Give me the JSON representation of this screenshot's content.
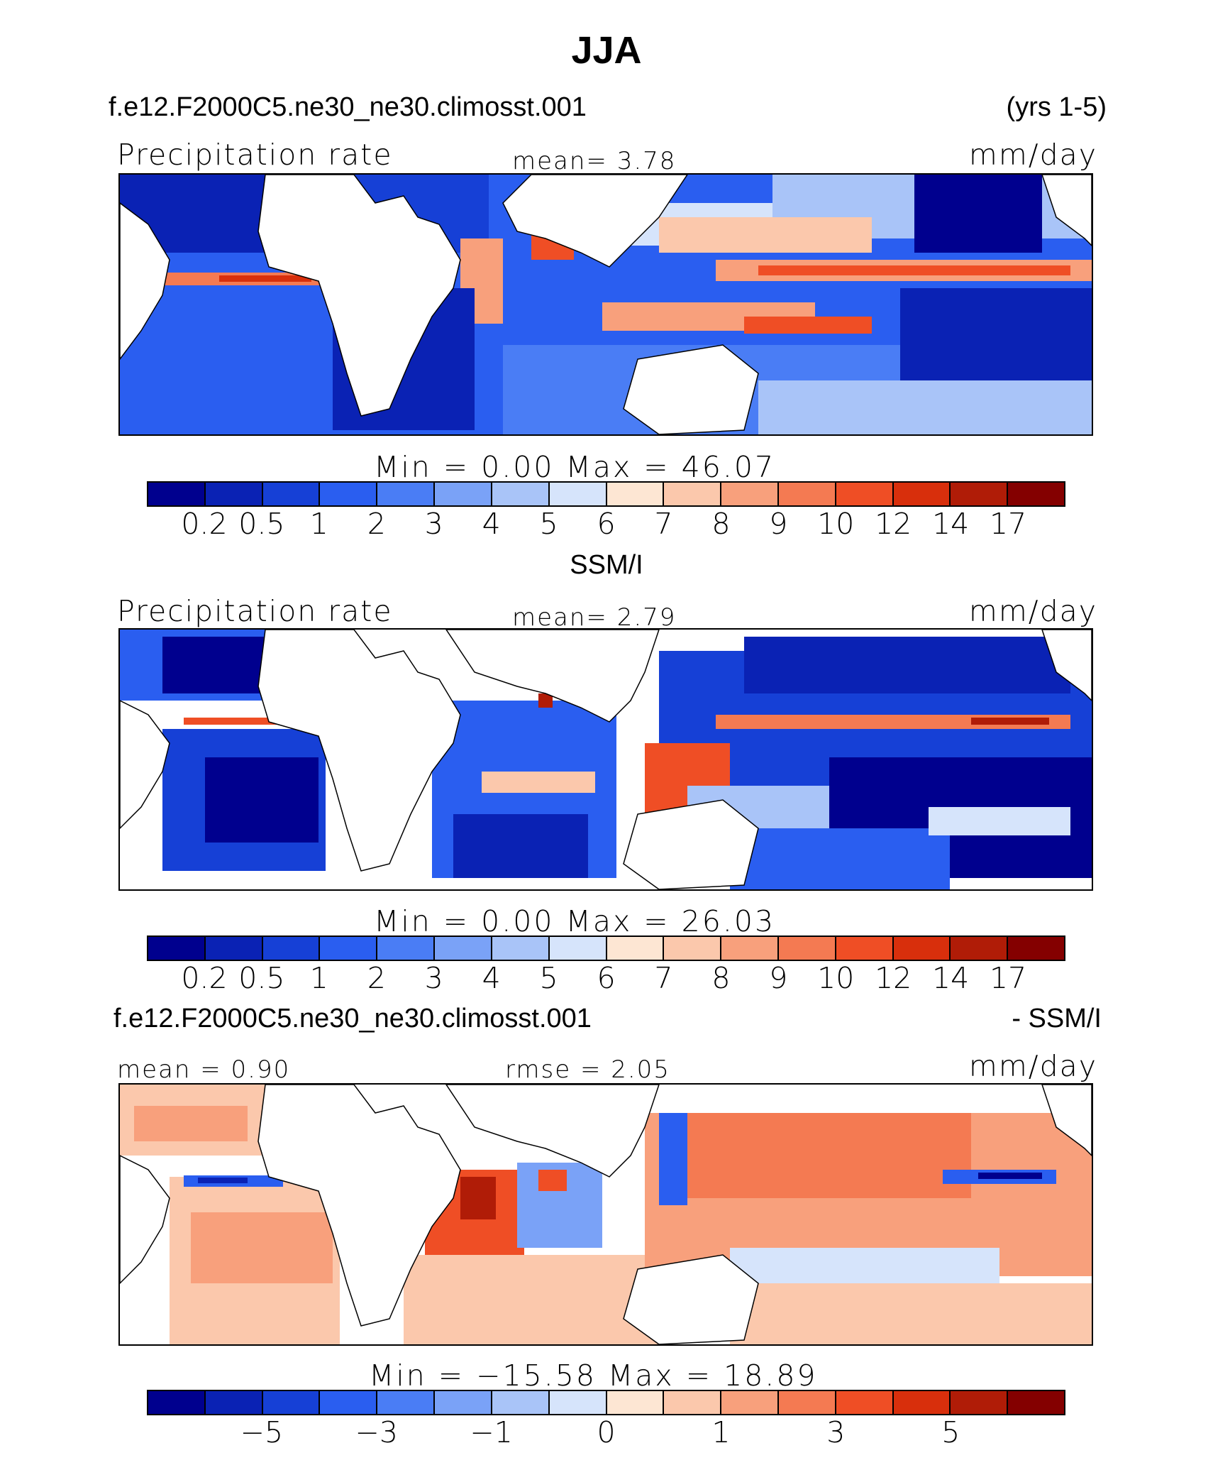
{
  "title": "JJA",
  "run_name": "f.e12.F2000C5.ne30_ne30.climosst.001",
  "years": "(yrs 1-5)",
  "panels": [
    {
      "var_label": "Precipitation rate",
      "stat_text": "mean=   3.78",
      "units": "mm/day",
      "minmax_text": "Min  =     0.00  Max  =    46.07"
    },
    {
      "heading": "SSM/I",
      "var_label": "Precipitation rate",
      "stat_text": "mean=   2.79",
      "units": "mm/day",
      "minmax_text": "Min  =     0.00  Max  =    26.03"
    },
    {
      "heading_left": "f.e12.F2000C5.ne30_ne30.climosst.001",
      "heading_right": "- SSM/I",
      "stat_left": "mean =   0.90",
      "stat_center": "rmse =   2.05",
      "units": "mm/day",
      "minmax_text": "Min  = −15.58  Max  =    18.89"
    }
  ],
  "colorbar": {
    "colors": [
      "#00008e",
      "#0a22b4",
      "#1640d6",
      "#2a5ef0",
      "#4a7df5",
      "#7aa2f7",
      "#a9c4f8",
      "#d6e4fb",
      "#fde6d3",
      "#fbc8ac",
      "#f8a07c",
      "#f47a52",
      "#ef4e25",
      "#d82f0c",
      "#b01c07",
      "#840000"
    ],
    "precip_ticks": [
      "0.2",
      "0.5",
      "1",
      "2",
      "3",
      "4",
      "5",
      "6",
      "7",
      "8",
      "9",
      "10",
      "12",
      "14",
      "17"
    ],
    "diff_ticks": [
      "−5",
      "−3",
      "−1",
      "0",
      "1",
      "3",
      "5"
    ]
  }
}
